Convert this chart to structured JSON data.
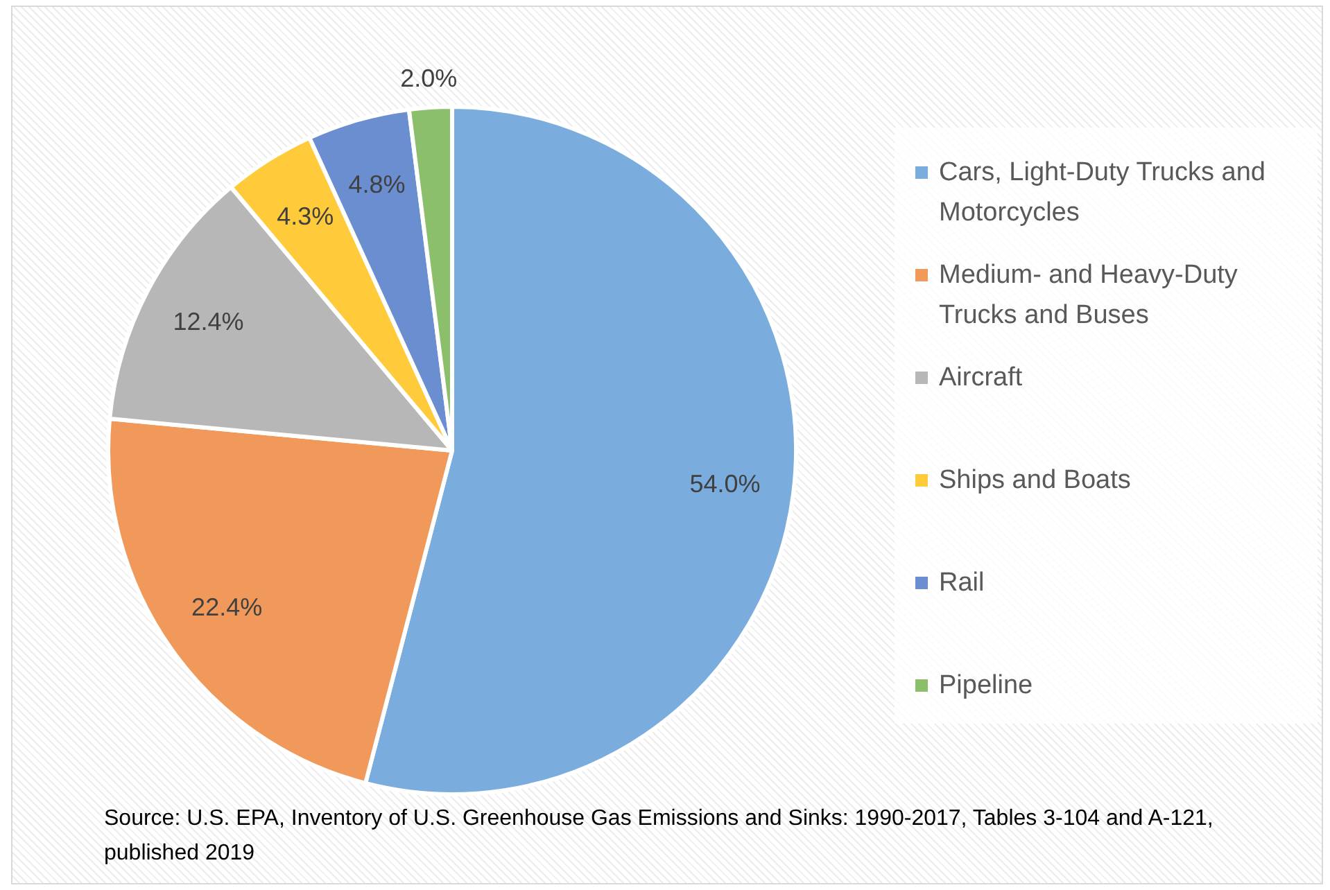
{
  "chart_data": {
    "type": "pie",
    "categories": [
      "Cars, Light-Duty Trucks and Motorcycles",
      "Medium- and Heavy-Duty Trucks and Buses",
      "Aircraft",
      "Ships and Boats",
      "Rail",
      "Pipeline"
    ],
    "values": [
      54.0,
      22.4,
      12.4,
      4.3,
      4.8,
      2.0
    ],
    "colors": [
      "#7aacdd",
      "#f0995a",
      "#b7b7b7",
      "#ffcb3a",
      "#6a8ed0",
      "#8cbf6b"
    ],
    "value_labels": [
      "54.0%",
      "22.4%",
      "12.4%",
      "4.3%",
      "4.8%",
      "2.0%"
    ],
    "legend": "right",
    "annotations": [
      "Source: U.S. EPA, Inventory of U.S. Greenhouse Gas Emissions and Sinks: 1990-2017, Tables 3-104 and A-121, published 2019"
    ]
  }
}
